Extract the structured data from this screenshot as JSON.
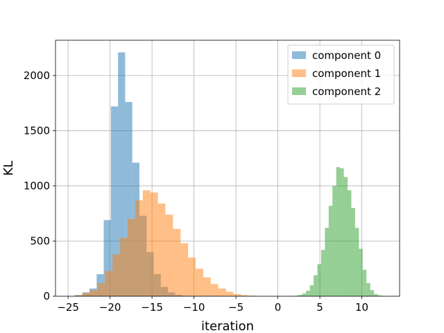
{
  "chart_data": {
    "type": "histogram",
    "title": "",
    "xlabel": "iteration",
    "ylabel": "KL",
    "xlim": [
      -26.5,
      14.5
    ],
    "ylim": [
      0,
      2320
    ],
    "xticks": [
      -25,
      -20,
      -15,
      -10,
      -5,
      0,
      5,
      10
    ],
    "xtick_labels": [
      "−25",
      "−20",
      "−15",
      "−10",
      "−5",
      "0",
      "5",
      "10"
    ],
    "yticks": [
      0,
      500,
      1000,
      1500,
      2000
    ],
    "ytick_labels": [
      "0",
      "500",
      "1000",
      "1500",
      "2000"
    ],
    "grid": true,
    "legend_position": "top-right",
    "series": [
      {
        "name": "component 0",
        "color": "#1f77b4",
        "opacity": 0.5,
        "bin_start": -25.0,
        "bin_width": 0.85,
        "counts": [
          3,
          10,
          35,
          70,
          200,
          690,
          1720,
          2210,
          1760,
          1210,
          730,
          400,
          200,
          85,
          35,
          12,
          5,
          2
        ]
      },
      {
        "name": "component 1",
        "color": "#ff7f0e",
        "opacity": 0.5,
        "bin_start": -24.2,
        "bin_width": 0.9,
        "counts": [
          10,
          30,
          55,
          120,
          230,
          380,
          530,
          700,
          870,
          960,
          940,
          840,
          740,
          610,
          480,
          350,
          250,
          170,
          110,
          70,
          40,
          20,
          10,
          5
        ]
      },
      {
        "name": "component 2",
        "color": "#2ca02c",
        "opacity": 0.5,
        "bin_start": 2.0,
        "bin_width": 0.45,
        "counts": [
          5,
          12,
          25,
          50,
          100,
          190,
          290,
          420,
          620,
          820,
          1000,
          1170,
          1160,
          1080,
          960,
          800,
          620,
          430,
          240,
          120,
          55,
          20,
          8
        ]
      }
    ]
  }
}
